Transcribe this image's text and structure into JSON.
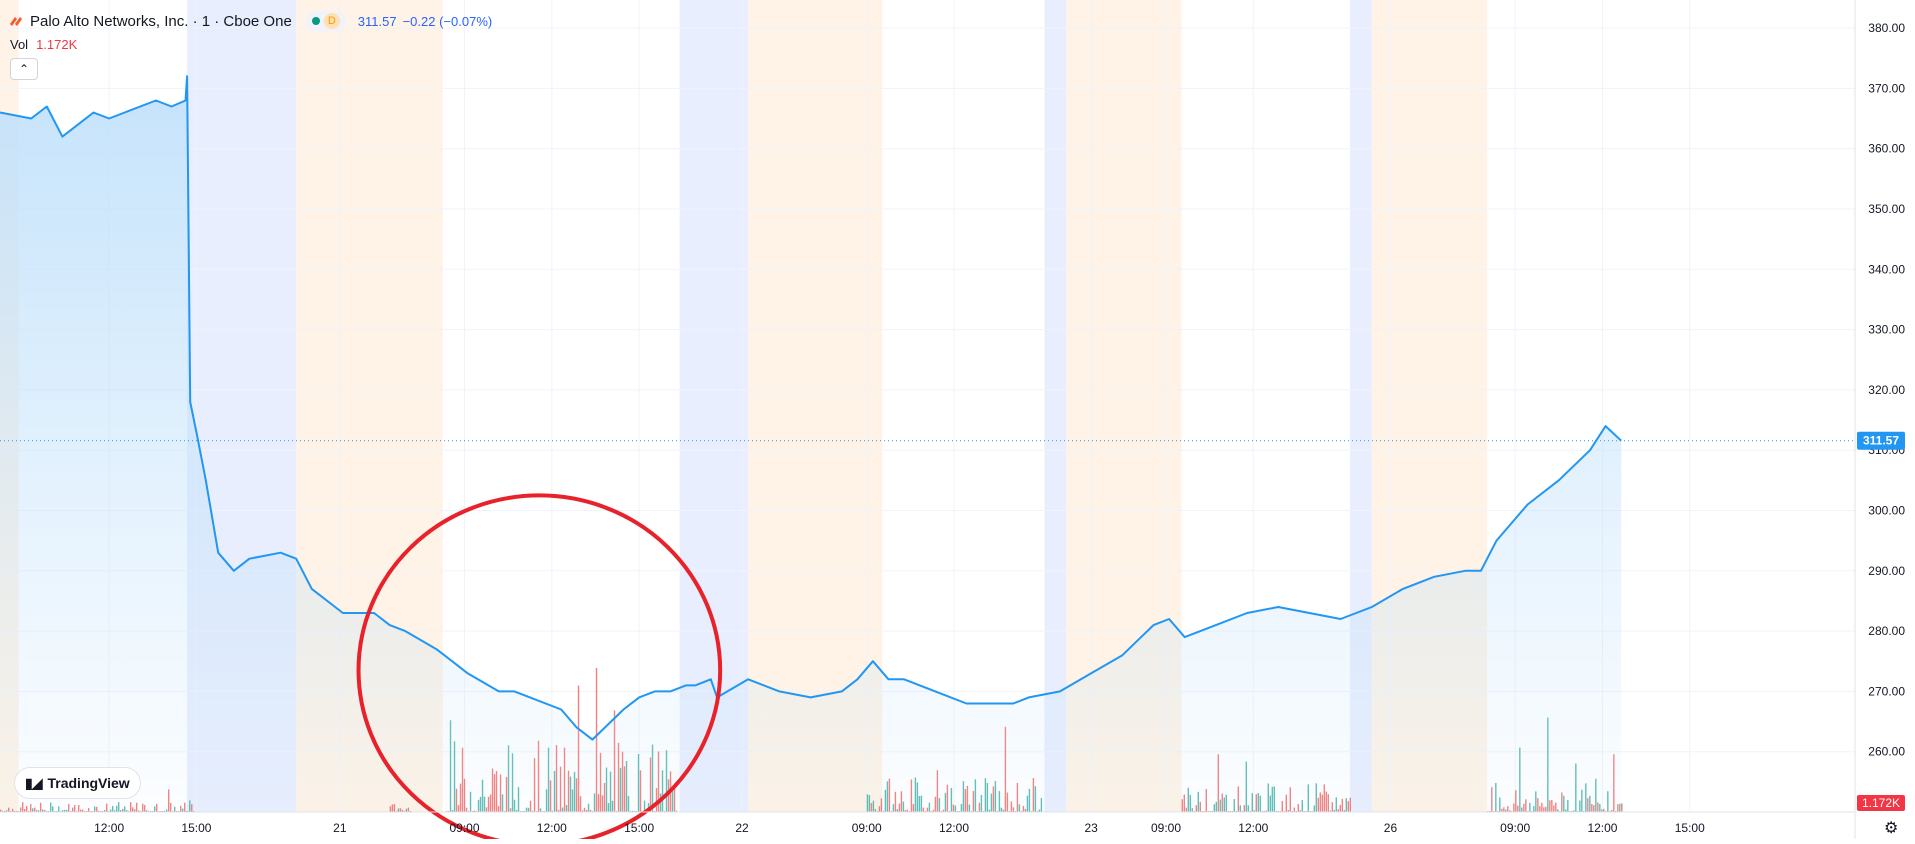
{
  "header": {
    "title": "Palo Alto Networks, Inc. · 1 · Cboe One",
    "interval_badge": "D",
    "price": "311.57",
    "change": "−0.22 (−0.07%)"
  },
  "volume_legend": {
    "label": "Vol",
    "value": "1.172K"
  },
  "logo_text": "TradingView",
  "colors": {
    "line": "#2196f3",
    "area_top": "#bfe0fb",
    "premarket": "#e8eefd",
    "afterhours": "#fef3e6",
    "vol_up": "#26a69a",
    "vol_down": "#ef5350",
    "annotation": "#e8222a",
    "price_tag": "#2196f3",
    "volume_tag": "#f23645"
  },
  "chart_data": {
    "type": "area",
    "title": "",
    "ylim": [
      250,
      383
    ],
    "y_ticks": [
      260,
      270,
      280,
      290,
      300,
      310,
      320,
      330,
      340,
      350,
      360,
      370,
      380
    ],
    "y_tick_labels": [
      "260.00",
      "270.00",
      "280.00",
      "290.00",
      "300.00",
      "310.00",
      "320.00",
      "330.00",
      "340.00",
      "350.00",
      "360.00",
      "370.00",
      "380.00"
    ],
    "x_tick_labels": [
      "12:00",
      "15:00",
      "21",
      "09:00",
      "12:00",
      "15:00",
      "22",
      "09:00",
      "12:00",
      "23",
      "09:00",
      "12:00",
      "26",
      "09:00",
      "12:00",
      "15:00"
    ],
    "last_price": 311.57,
    "last_price_label": "311.57",
    "volume_label": "1.172K",
    "sessions": [
      {
        "type": "afterhours",
        "start": 0.0,
        "end": 0.6
      },
      {
        "type": "premarket",
        "start": 6.0,
        "end": 9.5
      },
      {
        "type": "afterhours",
        "start": 9.5,
        "end": 14.2
      },
      {
        "type": "premarket",
        "start": 21.8,
        "end": 24.0
      },
      {
        "type": "afterhours",
        "start": 24.0,
        "end": 28.3
      },
      {
        "type": "premarket",
        "start": 33.5,
        "end": 34.2
      },
      {
        "type": "afterhours",
        "start": 34.2,
        "end": 37.9
      },
      {
        "type": "premarket",
        "start": 43.3,
        "end": 44.0
      },
      {
        "type": "afterhours",
        "start": 44.0,
        "end": 47.7
      }
    ],
    "series": [
      {
        "x": [
          0,
          1,
          1.5,
          2,
          2.5,
          3,
          3.5,
          4,
          5,
          5.5,
          5.95,
          6.0,
          6.1,
          6.3,
          6.6,
          7,
          7.5,
          8,
          9,
          9.5,
          10,
          11,
          12,
          12.5,
          13,
          14,
          14.5,
          15,
          16,
          16.5,
          17,
          18,
          18.5,
          19,
          20,
          20.5,
          21,
          21.5,
          22,
          22.3,
          22.8,
          23,
          24,
          25,
          26,
          27,
          27.5,
          28,
          28.5,
          29,
          30,
          31,
          32,
          32.5,
          33,
          34,
          35,
          36,
          37,
          37.5,
          38,
          39,
          40,
          41,
          42,
          43,
          44,
          45,
          46,
          47,
          47.5,
          48,
          49,
          50,
          51,
          51.5,
          52
        ],
        "values": [
          366,
          365,
          367,
          362,
          364,
          366,
          365,
          366,
          368,
          367,
          368,
          372,
          318,
          313,
          305,
          293,
          290,
          292,
          293,
          292,
          287,
          283,
          283,
          281,
          280,
          277,
          275,
          273,
          270,
          270,
          269,
          267,
          264,
          262,
          267,
          269,
          270,
          270,
          271,
          271,
          272,
          269,
          272,
          270,
          269,
          270,
          272,
          275,
          272,
          272,
          270,
          268,
          268,
          268,
          269,
          270,
          273,
          276,
          281,
          282,
          279,
          281,
          283,
          284,
          283,
          282,
          284,
          287,
          289,
          290,
          290,
          295,
          301,
          305,
          310,
          314,
          311.57
        ]
      }
    ],
    "volume": [
      {
        "start": 0.0,
        "end": 6.0,
        "max": 0.12
      },
      {
        "start": 6.0,
        "end": 6.2,
        "max": 0.25
      },
      {
        "start": 12.5,
        "end": 13.2,
        "max": 0.12
      },
      {
        "start": 14.3,
        "end": 21.7,
        "max": 0.85
      },
      {
        "start": 27.8,
        "end": 33.4,
        "max": 0.42
      },
      {
        "start": 37.9,
        "end": 43.3,
        "max": 0.35
      },
      {
        "start": 47.7,
        "end": 52.0,
        "max": 0.4
      }
    ],
    "x_tick_positions": [
      3.5,
      6.3,
      10.9,
      14.9,
      17.7,
      20.5,
      23.8,
      27.8,
      30.6,
      35.0,
      37.4,
      40.2,
      44.6,
      48.6,
      51.4,
      54.2
    ],
    "annotation": {
      "type": "ellipse",
      "cx": 17.3,
      "cy": 273.5,
      "rx": 5.8,
      "ry": 29
    },
    "xlim": [
      0,
      59.5
    ]
  }
}
